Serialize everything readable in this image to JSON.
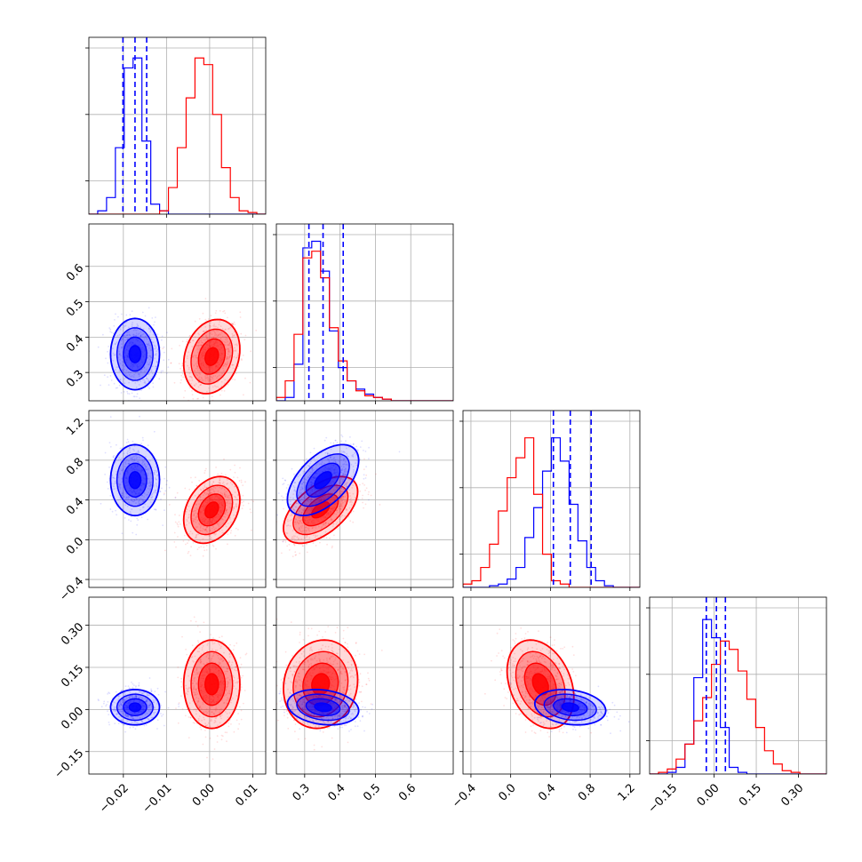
{
  "chart_data": {
    "type": "corner",
    "title": "",
    "grid": true,
    "legend": "none",
    "series": [
      {
        "color": "#0000ff"
      },
      {
        "color": "#ff0000"
      }
    ],
    "variables": [
      {
        "range": [
          -0.028,
          0.013
        ],
        "ticks": [
          -0.02,
          -0.01,
          0.0,
          0.01
        ],
        "tick_labels": [
          "−0.02",
          "−0.01",
          "0.00",
          "0.01"
        ],
        "summary_blue": {
          "median": -0.0173,
          "lower": -0.0201,
          "upper": -0.0146
        },
        "hist_blue": [
          0.0,
          0.02,
          0.1,
          0.4,
          0.88,
          0.94,
          0.44,
          0.06,
          0.02,
          0.0,
          0.0,
          0.0,
          0.0,
          0.0,
          0.0,
          0.0,
          0.0,
          0.0,
          0.0,
          0.0
        ],
        "hist_red": [
          0.0,
          0.0,
          0.0,
          0.0,
          0.0,
          0.0,
          0.0,
          0.0,
          0.02,
          0.16,
          0.4,
          0.7,
          0.94,
          0.9,
          0.6,
          0.28,
          0.1,
          0.02,
          0.01,
          0.0
        ]
      },
      {
        "range": [
          0.22,
          0.72
        ],
        "ticks": [
          0.3,
          0.4,
          0.5,
          0.6
        ],
        "tick_labels": [
          "0.3",
          "0.4",
          "0.5",
          "0.6"
        ],
        "summary_blue": {
          "median": 0.352,
          "lower": 0.312,
          "upper": 0.409
        },
        "hist_blue": [
          0.0,
          0.02,
          0.22,
          0.92,
          0.96,
          0.78,
          0.42,
          0.2,
          0.12,
          0.07,
          0.04,
          0.02,
          0.01,
          0.0,
          0.0,
          0.0,
          0.0,
          0.0,
          0.0,
          0.0
        ],
        "hist_red": [
          0.02,
          0.12,
          0.4,
          0.86,
          0.9,
          0.74,
          0.44,
          0.24,
          0.12,
          0.06,
          0.03,
          0.02,
          0.01,
          0.0,
          0.0,
          0.0,
          0.0,
          0.0,
          0.0,
          0.0
        ]
      },
      {
        "range": [
          -0.48,
          1.3
        ],
        "ticks": [
          -0.4,
          0.0,
          0.4,
          0.8,
          1.2
        ],
        "tick_labels": [
          "−0.4",
          "0.0",
          "0.4",
          "0.8",
          "1.2"
        ],
        "summary_blue": {
          "median": 0.6,
          "lower": 0.43,
          "upper": 0.81
        },
        "hist_blue": [
          0.0,
          0.0,
          0.0,
          0.01,
          0.02,
          0.05,
          0.12,
          0.3,
          0.48,
          0.7,
          0.9,
          0.76,
          0.5,
          0.28,
          0.12,
          0.04,
          0.01,
          0.0,
          0.0,
          0.0
        ],
        "hist_red": [
          0.02,
          0.04,
          0.12,
          0.26,
          0.46,
          0.66,
          0.78,
          0.9,
          0.56,
          0.2,
          0.04,
          0.02,
          0.0,
          0.0,
          0.0,
          0.0,
          0.0,
          0.0,
          0.0,
          0.0
        ]
      },
      {
        "range": [
          -0.23,
          0.4
        ],
        "ticks": [
          -0.15,
          0.0,
          0.15,
          0.3
        ],
        "tick_labels": [
          "−0.15",
          "0.00",
          "0.15",
          "0.30"
        ],
        "summary_blue": {
          "median": 0.008,
          "lower": -0.028,
          "upper": 0.04
        },
        "hist_blue": [
          0.0,
          0.0,
          0.01,
          0.04,
          0.18,
          0.58,
          0.93,
          0.82,
          0.28,
          0.04,
          0.01,
          0.0,
          0.0,
          0.0,
          0.0,
          0.0,
          0.0,
          0.0,
          0.0,
          0.0
        ],
        "hist_red": [
          0.0,
          0.01,
          0.03,
          0.09,
          0.18,
          0.32,
          0.46,
          0.66,
          0.8,
          0.75,
          0.62,
          0.45,
          0.28,
          0.14,
          0.06,
          0.02,
          0.01,
          0.0,
          0.0,
          0.0
        ]
      }
    ],
    "blue_2d": {
      "means": [
        -0.0173,
        0.352,
        0.6,
        0.008
      ],
      "sds": [
        0.0027,
        0.048,
        0.17,
        0.03
      ],
      "correlations": [
        [
          0,
          1,
          0.0
        ],
        [
          0,
          2,
          0.0
        ],
        [
          0,
          3,
          0.0
        ],
        [
          1,
          2,
          0.55
        ],
        [
          1,
          3,
          -0.2
        ],
        [
          2,
          3,
          -0.2
        ]
      ]
    },
    "red_2d": {
      "means": [
        0.0005,
        0.345,
        0.3,
        0.09
      ],
      "sds": [
        0.0031,
        0.05,
        0.16,
        0.075
      ],
      "correlations": [
        [
          0,
          1,
          0.2
        ],
        [
          0,
          2,
          0.3
        ],
        [
          0,
          3,
          0.0
        ],
        [
          1,
          2,
          0.55
        ],
        [
          1,
          3,
          0.1
        ],
        [
          2,
          3,
          -0.3
        ]
      ]
    }
  }
}
